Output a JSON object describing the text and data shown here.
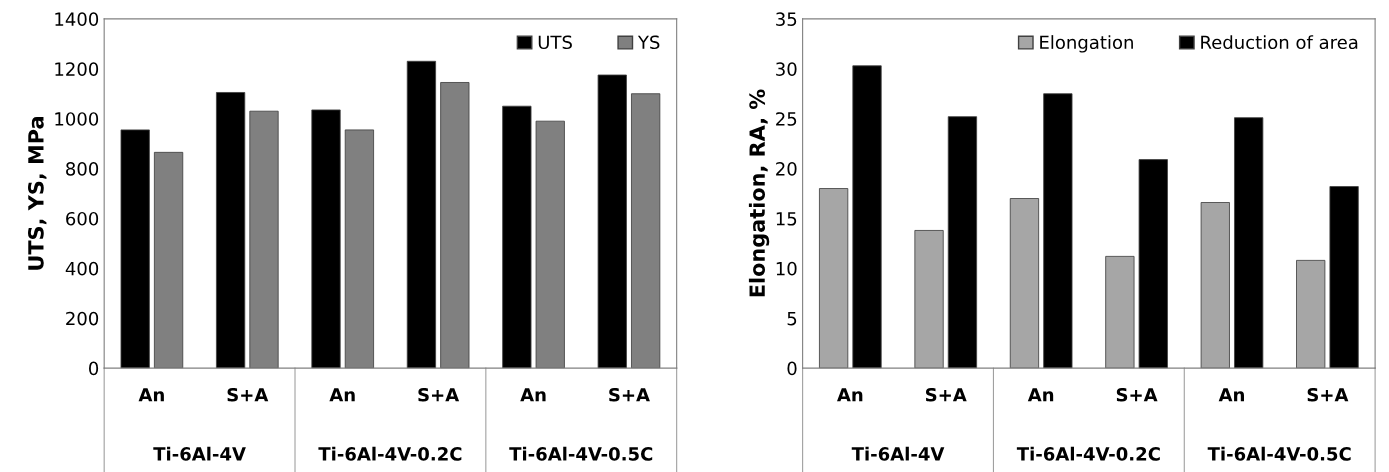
{
  "chart_data": [
    {
      "type": "bar",
      "ylabel": "UTS, YS, MPa",
      "categories": [
        "An",
        "S+A",
        "An",
        "S+A",
        "An",
        "S+A"
      ],
      "series": [
        {
          "name": "UTS",
          "color": "#000000",
          "values": [
            955,
            1105,
            1035,
            1230,
            1050,
            1175
          ]
        },
        {
          "name": "YS",
          "color": "#808080",
          "values": [
            865,
            1030,
            955,
            1145,
            990,
            1100
          ]
        }
      ],
      "annotations": [
        "Ti-6Al-4V",
        "Ti-6Al-4V-0.2C",
        "Ti-6Al-4V-0.5C"
      ],
      "ylim": [
        0,
        1400
      ],
      "yticks": [
        0,
        200,
        400,
        600,
        800,
        1000,
        1200,
        1400
      ],
      "grid": false,
      "legend": "top right"
    },
    {
      "type": "bar",
      "ylabel": "Elongation, RA, %",
      "categories": [
        "An",
        "S+A",
        "An",
        "S+A",
        "An",
        "S+A"
      ],
      "series": [
        {
          "name": "Elongation",
          "color": "#a6a6a6",
          "values": [
            18,
            13.8,
            17,
            11.2,
            16.6,
            10.8
          ]
        },
        {
          "name": "Reduction of area",
          "color": "#000000",
          "values": [
            30.3,
            25.2,
            27.5,
            20.9,
            25.1,
            18.2
          ]
        }
      ],
      "annotations": [
        "Ti-6Al-4V",
        "Ti-6Al-4V-0.2C",
        "Ti-6Al-4V-0.5C"
      ],
      "ylim": [
        0,
        35
      ],
      "yticks": [
        0,
        5,
        10,
        15,
        20,
        25,
        30,
        35
      ],
      "grid": false,
      "legend": "top right"
    }
  ]
}
